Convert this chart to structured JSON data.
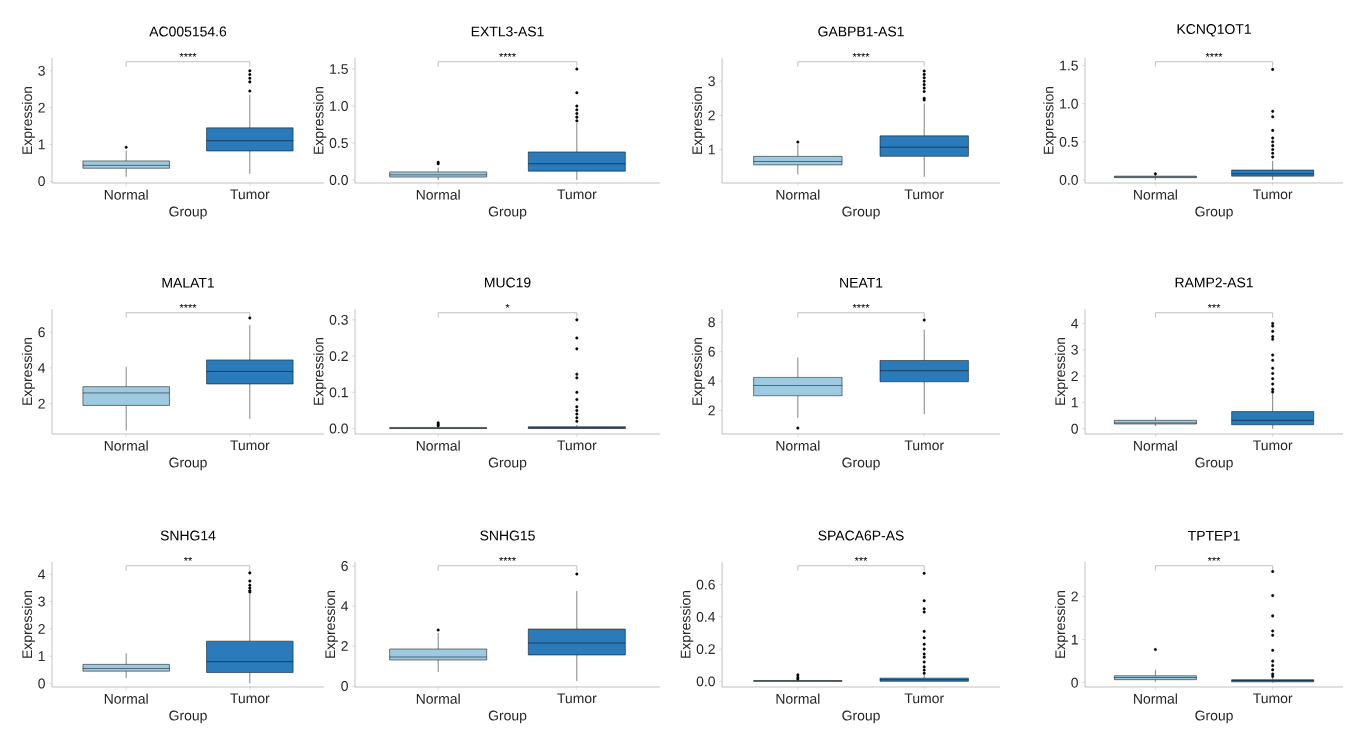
{
  "chart_data": [
    {
      "type": "box",
      "title": "AC005154.6",
      "xlabel": "Group",
      "ylabel": "Expression",
      "categories": [
        "Normal",
        "Tumor"
      ],
      "colors": [
        "#9ecae1",
        "#2b7bba"
      ],
      "ylim": [
        -0.05,
        3.35
      ],
      "yticks": [
        0,
        1,
        2,
        3
      ],
      "annotations": [
        "****"
      ],
      "boxes": [
        {
          "low": 0.12,
          "q1": 0.35,
          "median": 0.43,
          "q3": 0.55,
          "high": 0.83,
          "outliers": [
            0.92
          ]
        },
        {
          "low": 0.2,
          "q1": 0.82,
          "median": 1.1,
          "q3": 1.45,
          "high": 2.35,
          "outliers": [
            2.45,
            2.7,
            2.8,
            2.9,
            3.0
          ]
        }
      ]
    },
    {
      "type": "box",
      "title": "EXTL3-AS1",
      "xlabel": "Group",
      "ylabel": "Expression",
      "categories": [
        "Normal",
        "Tumor"
      ],
      "colors": [
        "#9ecae1",
        "#2b7bba"
      ],
      "ylim": [
        -0.04,
        1.65
      ],
      "yticks": [
        {
          "value": 0,
          "label": "0.0"
        },
        {
          "value": 0.5,
          "label": "0.5"
        },
        {
          "value": 1,
          "label": "1.0"
        },
        {
          "value": 1.5,
          "label": "1.5"
        }
      ],
      "annotations": [
        "****"
      ],
      "boxes": [
        {
          "low": 0.0,
          "q1": 0.04,
          "median": 0.07,
          "q3": 0.11,
          "high": 0.17,
          "outliers": [
            0.22,
            0.24
          ]
        },
        {
          "low": 0.0,
          "q1": 0.12,
          "median": 0.22,
          "q3": 0.38,
          "high": 0.77,
          "outliers": [
            0.8,
            0.85,
            0.9,
            0.95,
            1.0,
            1.18,
            1.5
          ]
        }
      ]
    },
    {
      "type": "box",
      "title": "GABPB1-AS1",
      "xlabel": "Group",
      "ylabel": "Expression",
      "categories": [
        "Normal",
        "Tumor"
      ],
      "colors": [
        "#9ecae1",
        "#2b7bba"
      ],
      "ylim": [
        0.02,
        3.68
      ],
      "yticks": [
        1,
        2,
        3
      ],
      "annotations": [
        "****"
      ],
      "boxes": [
        {
          "low": 0.27,
          "q1": 0.55,
          "median": 0.65,
          "q3": 0.8,
          "high": 1.15,
          "outliers": [
            1.22
          ]
        },
        {
          "low": 0.2,
          "q1": 0.8,
          "median": 1.07,
          "q3": 1.4,
          "high": 2.35,
          "outliers": [
            2.45,
            2.5,
            2.7,
            2.8,
            2.9,
            3.0,
            3.1,
            3.2,
            3.3
          ]
        }
      ]
    },
    {
      "type": "box",
      "title": "KCNQ1OT1",
      "xlabel": "Group",
      "ylabel": "Expression",
      "categories": [
        "Normal",
        "Tumor"
      ],
      "colors": [
        "#9ecae1",
        "#2b7bba"
      ],
      "ylim": [
        -0.04,
        1.6
      ],
      "yticks": [
        {
          "value": 0,
          "label": "0.0"
        },
        {
          "value": 0.5,
          "label": "0.5"
        },
        {
          "value": 1,
          "label": "1.0"
        },
        {
          "value": 1.5,
          "label": "1.5"
        }
      ],
      "annotations": [
        "****"
      ],
      "boxes": [
        {
          "low": 0.0,
          "q1": 0.03,
          "median": 0.04,
          "q3": 0.05,
          "high": 0.07,
          "outliers": [
            0.08
          ]
        },
        {
          "low": 0.0,
          "q1": 0.05,
          "median": 0.08,
          "q3": 0.13,
          "high": 0.25,
          "outliers": [
            0.3,
            0.35,
            0.4,
            0.45,
            0.5,
            0.55,
            0.65,
            0.83,
            0.9,
            1.45
          ]
        }
      ]
    },
    {
      "type": "box",
      "title": "MALAT1",
      "xlabel": "Group",
      "ylabel": "Expression",
      "categories": [
        "Normal",
        "Tumor"
      ],
      "colors": [
        "#9ecae1",
        "#2b7bba"
      ],
      "ylim": [
        0.3,
        7.3
      ],
      "yticks": [
        2,
        4,
        6
      ],
      "annotations": [
        "****"
      ],
      "boxes": [
        {
          "low": 0.5,
          "q1": 1.9,
          "median": 2.6,
          "q3": 2.95,
          "high": 4.05
        },
        {
          "low": 1.15,
          "q1": 3.1,
          "median": 3.8,
          "q3": 4.45,
          "high": 6.4,
          "outliers": [
            6.8
          ]
        }
      ]
    },
    {
      "type": "box",
      "title": "MUC19",
      "xlabel": "Group",
      "ylabel": "Expression",
      "categories": [
        "Normal",
        "Tumor"
      ],
      "colors": [
        "#9ecae1",
        "#2b7bba"
      ],
      "ylim": [
        -0.015,
        0.33
      ],
      "yticks": [
        {
          "value": 0,
          "label": "0.0"
        },
        0.1,
        0.2,
        0.3
      ],
      "annotations": [
        "*"
      ],
      "boxes": [
        {
          "low": 0,
          "q1": 0,
          "median": 0.001,
          "q3": 0.003,
          "high": 0.004,
          "outliers": [
            0.008,
            0.012,
            0.016
          ]
        },
        {
          "low": 0,
          "q1": 0,
          "median": 0.002,
          "q3": 0.005,
          "high": 0.01,
          "outliers": [
            0.02,
            0.03,
            0.04,
            0.05,
            0.06,
            0.08,
            0.1,
            0.14,
            0.15,
            0.22,
            0.25,
            0.3
          ]
        }
      ]
    },
    {
      "type": "box",
      "title": "NEAT1",
      "xlabel": "Group",
      "ylabel": "Expression",
      "categories": [
        "Normal",
        "Tumor"
      ],
      "colors": [
        "#9ecae1",
        "#2b7bba"
      ],
      "ylim": [
        0.4,
        8.9
      ],
      "yticks": [
        2,
        4,
        6,
        8
      ],
      "annotations": [
        "****"
      ],
      "boxes": [
        {
          "low": 1.5,
          "q1": 3.0,
          "median": 3.7,
          "q3": 4.25,
          "high": 5.6,
          "outliers": [
            0.8
          ]
        },
        {
          "low": 1.75,
          "q1": 3.95,
          "median": 4.7,
          "q3": 5.4,
          "high": 7.5,
          "outliers": [
            8.15
          ]
        }
      ]
    },
    {
      "type": "box",
      "title": "RAMP2-AS1",
      "xlabel": "Group",
      "ylabel": "Expression",
      "categories": [
        "Normal",
        "Tumor"
      ],
      "colors": [
        "#9ecae1",
        "#2b7bba"
      ],
      "ylim": [
        -0.2,
        4.55
      ],
      "yticks": [
        0,
        1,
        2,
        3,
        4
      ],
      "annotations": [
        "***"
      ],
      "boxes": [
        {
          "low": 0.1,
          "q1": 0.18,
          "median": 0.22,
          "q3": 0.32,
          "high": 0.45
        },
        {
          "low": 0,
          "q1": 0.15,
          "median": 0.32,
          "q3": 0.65,
          "high": 1.35,
          "outliers": [
            1.4,
            1.5,
            1.7,
            1.9,
            2.1,
            2.3,
            2.6,
            2.8,
            3.4,
            3.5,
            3.7,
            3.9,
            4.0
          ]
        }
      ]
    },
    {
      "type": "box",
      "title": "SNHG14",
      "xlabel": "Group",
      "ylabel": "Expression",
      "categories": [
        "Normal",
        "Tumor"
      ],
      "colors": [
        "#9ecae1",
        "#2b7bba"
      ],
      "ylim": [
        -0.13,
        4.45
      ],
      "yticks": [
        0,
        1,
        2,
        3,
        4
      ],
      "annotations": [
        "**"
      ],
      "boxes": [
        {
          "low": 0.2,
          "q1": 0.45,
          "median": 0.55,
          "q3": 0.7,
          "high": 1.1
        },
        {
          "low": 0.0,
          "q1": 0.4,
          "median": 0.8,
          "q3": 1.55,
          "high": 3.3,
          "outliers": [
            3.35,
            3.4,
            3.5,
            3.6,
            3.75,
            4.05
          ]
        }
      ]
    },
    {
      "type": "box",
      "title": "SNHG15",
      "xlabel": "Group",
      "ylabel": "Expression",
      "categories": [
        "Normal",
        "Tumor"
      ],
      "colors": [
        "#9ecae1",
        "#2b7bba"
      ],
      "ylim": [
        -0.05,
        6.2
      ],
      "yticks": [
        0,
        2,
        4,
        6
      ],
      "annotations": [
        "****"
      ],
      "boxes": [
        {
          "low": 0.7,
          "q1": 1.3,
          "median": 1.45,
          "q3": 1.85,
          "high": 2.65,
          "outliers": [
            2.8
          ]
        },
        {
          "low": 0.25,
          "q1": 1.55,
          "median": 2.15,
          "q3": 2.85,
          "high": 4.75,
          "outliers": [
            5.6
          ]
        }
      ]
    },
    {
      "type": "box",
      "title": "SPACA6P-AS",
      "xlabel": "Group",
      "ylabel": "Expression",
      "categories": [
        "Normal",
        "Tumor"
      ],
      "colors": [
        "#9ecae1",
        "#2b7bba"
      ],
      "ylim": [
        -0.035,
        0.74
      ],
      "yticks": [
        {
          "value": 0,
          "label": "0.0"
        },
        0.2,
        0.4,
        0.6
      ],
      "annotations": [
        "***"
      ],
      "boxes": [
        {
          "low": 0,
          "q1": 0,
          "median": 0.002,
          "q3": 0.005,
          "high": 0.008,
          "outliers": [
            0.015,
            0.025,
            0.04
          ]
        },
        {
          "low": 0,
          "q1": 0.0,
          "median": 0.01,
          "q3": 0.02,
          "high": 0.04,
          "outliers": [
            0.05,
            0.07,
            0.09,
            0.12,
            0.15,
            0.17,
            0.2,
            0.23,
            0.27,
            0.31,
            0.43,
            0.45,
            0.5,
            0.67
          ]
        }
      ]
    },
    {
      "type": "box",
      "title": "TPTEP1",
      "xlabel": "Group",
      "ylabel": "Expression",
      "categories": [
        "Normal",
        "Tumor"
      ],
      "colors": [
        "#9ecae1",
        "#2b7bba"
      ],
      "ylim": [
        -0.1,
        2.8
      ],
      "yticks": [
        0,
        1,
        2
      ],
      "annotations": [
        "***"
      ],
      "boxes": [
        {
          "low": 0.02,
          "q1": 0.07,
          "median": 0.12,
          "q3": 0.16,
          "high": 0.3,
          "outliers": [
            0.77
          ]
        },
        {
          "low": 0,
          "q1": 0.02,
          "median": 0.05,
          "q3": 0.07,
          "high": 0.13,
          "outliers": [
            0.15,
            0.2,
            0.3,
            0.4,
            0.5,
            0.75,
            1.1,
            1.2,
            1.55,
            2.02,
            2.58
          ]
        }
      ]
    }
  ]
}
